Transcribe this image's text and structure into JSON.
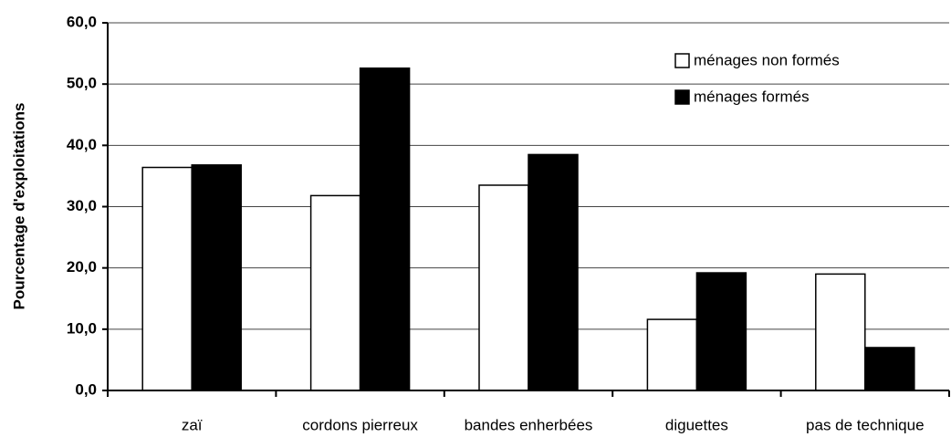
{
  "chart_data": {
    "type": "bar",
    "y_label": "Pourcentage d'exploitations",
    "categories": [
      "zaï",
      "cordons pierreux",
      "bandes enherbées",
      "diguettes",
      "pas de technique"
    ],
    "series": [
      {
        "name": "ménages non formés",
        "color": "#ffffff",
        "values": [
          36.4,
          31.8,
          33.5,
          11.6,
          19.0
        ]
      },
      {
        "name": "ménages formés",
        "color": "#000000",
        "values": [
          36.8,
          52.6,
          38.5,
          19.2,
          7.0
        ]
      }
    ],
    "ylim": [
      0,
      60
    ],
    "yticks": [
      {
        "value": 0,
        "label": "0,0"
      },
      {
        "value": 10,
        "label": "10,0"
      },
      {
        "value": 20,
        "label": "20,0"
      },
      {
        "value": 30,
        "label": "30,0"
      },
      {
        "value": 40,
        "label": "40,0"
      },
      {
        "value": 50,
        "label": "50,0"
      },
      {
        "value": 60,
        "label": "60,0"
      }
    ],
    "grid": true,
    "legend": "upper right"
  }
}
